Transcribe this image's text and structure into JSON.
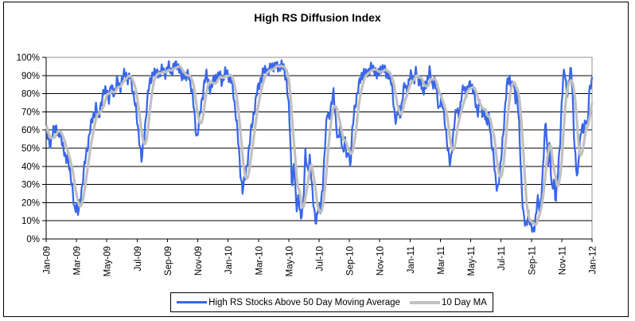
{
  "colors": {
    "series_blue": "#3A67E8",
    "series_gray": "#C0C0C0",
    "plot_border": "#909090",
    "gridline": "#000000",
    "axis": "#000000",
    "chart_border": "#000000",
    "background": "#FFFFFF",
    "text": "#000000"
  },
  "chart_data": {
    "type": "line",
    "title": "High RS Diffusion Index",
    "xlabel": "",
    "ylabel": "",
    "grid": "horizontal",
    "x_axis": {
      "unit": "months_since_Jan-09",
      "range": [
        0,
        36
      ],
      "tick_interval_months": 2,
      "tick_labels": [
        "Jan-09",
        "Mar-09",
        "May-09",
        "Jul-09",
        "Sep-09",
        "Nov-09",
        "Jan-10",
        "Mar-10",
        "May-10",
        "Jul-10",
        "Sep-10",
        "Nov-10",
        "Jan-11",
        "Mar-11",
        "May-11",
        "Jul-11",
        "Sep-11",
        "Nov-11",
        "Jan-12"
      ],
      "label_rotation_degrees": -90
    },
    "y_axis": {
      "min": 0,
      "max": 100,
      "tick_step": 10,
      "tick_labels": [
        "0%",
        "10%",
        "20%",
        "30%",
        "40%",
        "50%",
        "60%",
        "70%",
        "80%",
        "90%",
        "100%"
      ]
    },
    "legend": {
      "position": "bottom-center",
      "boxed": true,
      "entries": [
        {
          "label": "High RS Stocks Above 50 Day Moving Average",
          "color": "#3A67E8"
        },
        {
          "label": "10 Day MA",
          "color": "#C0C0C0"
        }
      ]
    },
    "series": [
      {
        "name": "High RS Stocks Above 50 Day Moving Average",
        "color": "#3A67E8",
        "points_format": "[months_since_Jan-09, percent]",
        "points": [
          [
            0,
            60
          ],
          [
            0.15,
            55
          ],
          [
            0.3,
            52
          ],
          [
            0.5,
            60
          ],
          [
            0.65,
            63
          ],
          [
            0.8,
            56
          ],
          [
            1,
            57
          ],
          [
            1.15,
            50
          ],
          [
            1.3,
            42
          ],
          [
            1.45,
            46
          ],
          [
            1.6,
            35
          ],
          [
            1.75,
            25
          ],
          [
            1.9,
            16
          ],
          [
            2,
            20
          ],
          [
            2.1,
            13
          ],
          [
            2.3,
            25
          ],
          [
            2.5,
            38
          ],
          [
            2.7,
            50
          ],
          [
            2.9,
            60
          ],
          [
            3.1,
            68
          ],
          [
            3.3,
            73
          ],
          [
            3.45,
            65
          ],
          [
            3.6,
            75
          ],
          [
            3.8,
            80
          ],
          [
            4,
            83
          ],
          [
            4.15,
            76
          ],
          [
            4.3,
            85
          ],
          [
            4.5,
            80
          ],
          [
            4.7,
            87
          ],
          [
            4.9,
            84
          ],
          [
            5.1,
            90
          ],
          [
            5.25,
            92
          ],
          [
            5.4,
            87
          ],
          [
            5.55,
            90
          ],
          [
            5.7,
            83
          ],
          [
            5.85,
            75
          ],
          [
            6,
            65
          ],
          [
            6.15,
            55
          ],
          [
            6.3,
            42
          ],
          [
            6.45,
            55
          ],
          [
            6.6,
            70
          ],
          [
            6.75,
            82
          ],
          [
            6.9,
            88
          ],
          [
            7.05,
            92
          ],
          [
            7.2,
            90
          ],
          [
            7.35,
            93
          ],
          [
            7.5,
            90
          ],
          [
            7.7,
            94
          ],
          [
            7.9,
            91
          ],
          [
            8.1,
            95
          ],
          [
            8.3,
            92
          ],
          [
            8.5,
            96
          ],
          [
            8.65,
            97
          ],
          [
            8.8,
            92
          ],
          [
            8.95,
            89
          ],
          [
            9.1,
            92
          ],
          [
            9.25,
            88
          ],
          [
            9.4,
            91
          ],
          [
            9.55,
            85
          ],
          [
            9.7,
            75
          ],
          [
            9.85,
            62
          ],
          [
            9.95,
            56
          ],
          [
            10.1,
            65
          ],
          [
            10.25,
            75
          ],
          [
            10.4,
            85
          ],
          [
            10.55,
            90
          ],
          [
            10.7,
            87
          ],
          [
            10.85,
            82
          ],
          [
            11,
            86
          ],
          [
            11.15,
            90
          ],
          [
            11.3,
            88
          ],
          [
            11.45,
            91
          ],
          [
            11.6,
            87
          ],
          [
            11.75,
            90
          ],
          [
            11.9,
            92
          ],
          [
            12.05,
            90
          ],
          [
            12.2,
            87
          ],
          [
            12.35,
            80
          ],
          [
            12.5,
            70
          ],
          [
            12.65,
            55
          ],
          [
            12.8,
            38
          ],
          [
            12.95,
            27
          ],
          [
            13.1,
            32
          ],
          [
            13.3,
            45
          ],
          [
            13.5,
            58
          ],
          [
            13.7,
            70
          ],
          [
            13.9,
            80
          ],
          [
            14.1,
            87
          ],
          [
            14.3,
            91
          ],
          [
            14.5,
            94
          ],
          [
            14.7,
            92
          ],
          [
            14.9,
            95
          ],
          [
            15.1,
            96
          ],
          [
            15.3,
            94
          ],
          [
            15.5,
            96
          ],
          [
            15.7,
            93
          ],
          [
            15.85,
            88
          ],
          [
            16,
            72
          ],
          [
            16.1,
            55
          ],
          [
            16.2,
            30
          ],
          [
            16.35,
            42
          ],
          [
            16.5,
            15
          ],
          [
            16.65,
            25
          ],
          [
            16.8,
            10
          ],
          [
            16.95,
            18
          ],
          [
            17.1,
            50
          ],
          [
            17.25,
            35
          ],
          [
            17.4,
            45
          ],
          [
            17.55,
            28
          ],
          [
            17.7,
            12
          ],
          [
            17.8,
            8
          ],
          [
            17.95,
            20
          ],
          [
            18.1,
            15
          ],
          [
            18.25,
            30
          ],
          [
            18.4,
            55
          ],
          [
            18.55,
            70
          ],
          [
            18.65,
            65
          ],
          [
            18.8,
            75
          ],
          [
            18.95,
            80
          ],
          [
            19.1,
            65
          ],
          [
            19.25,
            55
          ],
          [
            19.4,
            60
          ],
          [
            19.55,
            48
          ],
          [
            19.7,
            55
          ],
          [
            19.85,
            42
          ],
          [
            19.95,
            50
          ],
          [
            20.05,
            40
          ],
          [
            20.2,
            60
          ],
          [
            20.35,
            72
          ],
          [
            20.5,
            80
          ],
          [
            20.65,
            85
          ],
          [
            20.8,
            90
          ],
          [
            20.95,
            92
          ],
          [
            21.1,
            90
          ],
          [
            21.25,
            93
          ],
          [
            21.4,
            95
          ],
          [
            21.55,
            92
          ],
          [
            21.7,
            94
          ],
          [
            21.85,
            90
          ],
          [
            22,
            92
          ],
          [
            22.15,
            95
          ],
          [
            22.3,
            93
          ],
          [
            22.45,
            90
          ],
          [
            22.6,
            92
          ],
          [
            22.7,
            88
          ],
          [
            22.85,
            80
          ],
          [
            23,
            68
          ],
          [
            23.1,
            65
          ],
          [
            23.25,
            72
          ],
          [
            23.35,
            68
          ],
          [
            23.5,
            78
          ],
          [
            23.65,
            85
          ],
          [
            23.8,
            82
          ],
          [
            23.95,
            88
          ],
          [
            24.1,
            90
          ],
          [
            24.25,
            88
          ],
          [
            24.4,
            93
          ],
          [
            24.55,
            85
          ],
          [
            24.7,
            90
          ],
          [
            24.85,
            78
          ],
          [
            25,
            85
          ],
          [
            25.15,
            88
          ],
          [
            25.3,
            92
          ],
          [
            25.45,
            85
          ],
          [
            25.6,
            88
          ],
          [
            25.75,
            80
          ],
          [
            25.9,
            72
          ],
          [
            26.05,
            78
          ],
          [
            26.2,
            70
          ],
          [
            26.35,
            62
          ],
          [
            26.5,
            48
          ],
          [
            26.65,
            40
          ],
          [
            26.8,
            55
          ],
          [
            26.95,
            65
          ],
          [
            27.1,
            72
          ],
          [
            27.25,
            68
          ],
          [
            27.4,
            78
          ],
          [
            27.55,
            85
          ],
          [
            27.7,
            80
          ],
          [
            27.85,
            83
          ],
          [
            28,
            87
          ],
          [
            28.15,
            82
          ],
          [
            28.3,
            75
          ],
          [
            28.45,
            70
          ],
          [
            28.6,
            76
          ],
          [
            28.75,
            68
          ],
          [
            28.9,
            72
          ],
          [
            29.05,
            62
          ],
          [
            29.2,
            68
          ],
          [
            29.35,
            55
          ],
          [
            29.5,
            45
          ],
          [
            29.65,
            32
          ],
          [
            29.8,
            28
          ],
          [
            29.95,
            38
          ],
          [
            30.1,
            55
          ],
          [
            30.25,
            70
          ],
          [
            30.4,
            85
          ],
          [
            30.55,
            90
          ],
          [
            30.7,
            83
          ],
          [
            30.8,
            87
          ],
          [
            30.95,
            78
          ],
          [
            31.05,
            82
          ],
          [
            31.2,
            60
          ],
          [
            31.35,
            30
          ],
          [
            31.5,
            12
          ],
          [
            31.65,
            5
          ],
          [
            31.8,
            15
          ],
          [
            31.95,
            8
          ],
          [
            32.1,
            3
          ],
          [
            32.25,
            10
          ],
          [
            32.4,
            22
          ],
          [
            32.55,
            15
          ],
          [
            32.7,
            30
          ],
          [
            32.8,
            45
          ],
          [
            32.95,
            65
          ],
          [
            33.1,
            42
          ],
          [
            33.2,
            52
          ],
          [
            33.35,
            25
          ],
          [
            33.5,
            35
          ],
          [
            33.6,
            20
          ],
          [
            33.75,
            35
          ],
          [
            33.9,
            55
          ],
          [
            34,
            75
          ],
          [
            34.1,
            88
          ],
          [
            34.2,
            92
          ],
          [
            34.35,
            80
          ],
          [
            34.5,
            88
          ],
          [
            34.6,
            93
          ],
          [
            34.7,
            85
          ],
          [
            34.8,
            60
          ],
          [
            34.95,
            38
          ],
          [
            35.05,
            33
          ],
          [
            35.15,
            50
          ],
          [
            35.3,
            62
          ],
          [
            35.45,
            58
          ],
          [
            35.6,
            68
          ],
          [
            35.7,
            62
          ],
          [
            35.8,
            78
          ],
          [
            35.9,
            84
          ],
          [
            36,
            88
          ]
        ]
      },
      {
        "name": "10 Day MA",
        "color": "#C0C0C0",
        "derived": "10-day trailing moving average of series 0"
      }
    ]
  }
}
